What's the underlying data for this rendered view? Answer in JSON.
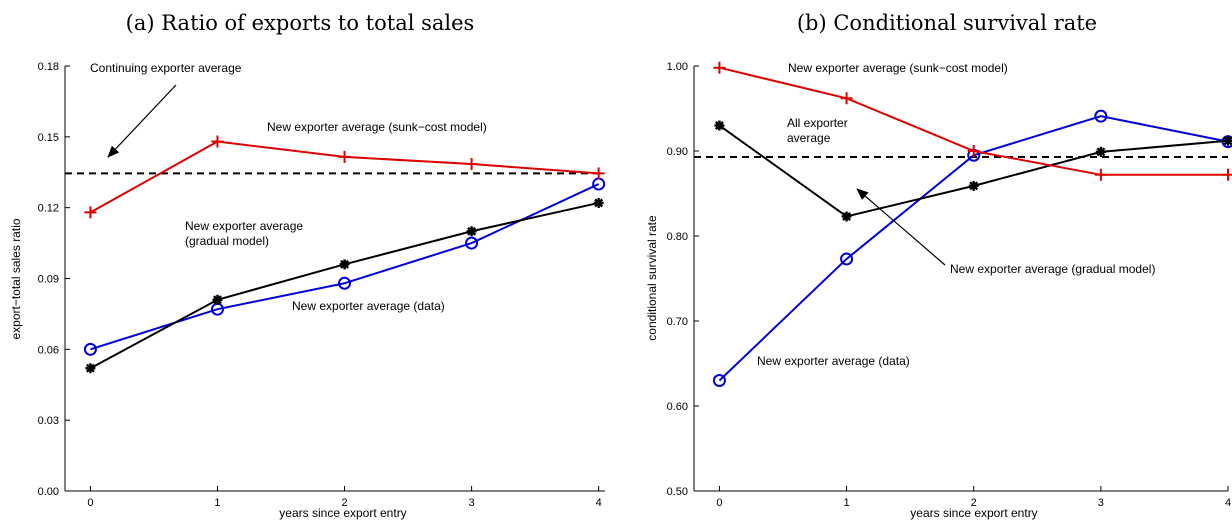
{
  "chart_data": [
    {
      "type": "line",
      "title": "(a) Ratio of exports to total sales",
      "xlabel": "years since export entry",
      "ylabel": "export−total sales ratio",
      "x": [
        0,
        1,
        2,
        3,
        4
      ],
      "xlim": [
        -0.2,
        4.05
      ],
      "ylim": [
        0,
        0.18
      ],
      "xticks": [
        "0",
        "1",
        "2",
        "3",
        "4"
      ],
      "yticks": [
        "0.00",
        "0.03",
        "0.06",
        "0.09",
        "0.12",
        "0.15",
        "0.18"
      ],
      "ytick_values": [
        0,
        0.03,
        0.06,
        0.09,
        0.12,
        0.15,
        0.18
      ],
      "grid": false,
      "series": [
        {
          "key": "data",
          "values": [
            0.06,
            0.077,
            0.088,
            0.105,
            0.13
          ],
          "color": "#0000dd",
          "marker": "circle"
        },
        {
          "key": "gradual",
          "values": [
            0.052,
            0.081,
            0.096,
            0.11,
            0.122
          ],
          "color": "#000000",
          "marker": "asterisk"
        },
        {
          "key": "sunk",
          "values": [
            0.118,
            0.148,
            0.1415,
            0.1385,
            0.1345
          ],
          "color": "#dd0000",
          "marker": "plus"
        }
      ],
      "reference_line": {
        "value": 0.1345,
        "style": "dashed",
        "color": "#000000"
      },
      "annotations": [
        {
          "text": "Continuing exporter average"
        },
        {
          "text": "New exporter average (sunk−cost model)"
        },
        {
          "text": "New exporter average"
        },
        {
          "text": "(gradual model)"
        },
        {
          "text": "New exporter average (data)"
        }
      ]
    },
    {
      "type": "line",
      "title": "(b) Conditional survival rate",
      "xlabel": "years since export entry",
      "ylabel": "conditional survival rate",
      "x": [
        0,
        1,
        2,
        3,
        4
      ],
      "xlim": [
        -0.2,
        4.0
      ],
      "ylim": [
        0.5,
        1.0
      ],
      "xticks": [
        "0",
        "1",
        "2",
        "3",
        "4"
      ],
      "yticks": [
        "0.50",
        "0.60",
        "0.70",
        "0.80",
        "0.90",
        "1.00"
      ],
      "ytick_values": [
        0.5,
        0.6,
        0.7,
        0.8,
        0.9,
        1.0
      ],
      "grid": false,
      "series": [
        {
          "key": "data",
          "values": [
            0.63,
            0.773,
            0.895,
            0.941,
            0.911
          ],
          "color": "#0000dd",
          "marker": "circle"
        },
        {
          "key": "gradual",
          "values": [
            0.93,
            0.823,
            0.859,
            0.899,
            0.912
          ],
          "color": "#000000",
          "marker": "asterisk"
        },
        {
          "key": "sunk",
          "values": [
            0.998,
            0.962,
            0.9,
            0.872,
            0.872
          ],
          "color": "#dd0000",
          "marker": "plus"
        }
      ],
      "reference_line": {
        "value": 0.893,
        "style": "dashed",
        "color": "#000000"
      },
      "annotations": [
        {
          "text": "New exporter average (sunk−cost model)"
        },
        {
          "text": "All exporter"
        },
        {
          "text": "average"
        },
        {
          "text": "New exporter average (gradual model)"
        },
        {
          "text": "New exporter average (data)"
        }
      ]
    }
  ]
}
